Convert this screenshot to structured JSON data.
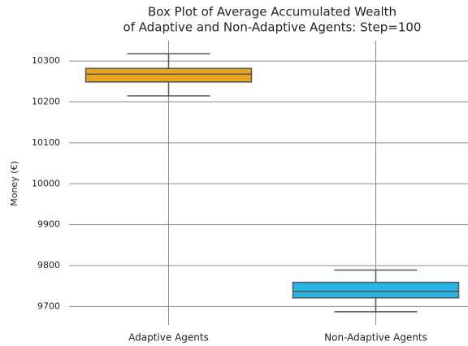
{
  "chart_data": {
    "type": "box",
    "title": [
      "Box Plot of Average Accumulated Wealth",
      "of Adaptive and Non-Adaptive Agents: Step=100"
    ],
    "y_label": "Money (€)",
    "categories": [
      "Adaptive Agents",
      "Non-Adaptive Agents"
    ],
    "colors": [
      "#e8a31f",
      "#2ab4e6"
    ],
    "whislo": [
      10215,
      9687
    ],
    "q1": [
      10249,
      9721
    ],
    "median": [
      10268,
      9737
    ],
    "q3": [
      10282,
      9759
    ],
    "whishi": [
      10318,
      9789
    ],
    "ylim": [
      9655,
      10350
    ],
    "yticks": [
      9700,
      9800,
      9900,
      10000,
      10100,
      10200,
      10300
    ],
    "grid": true
  }
}
